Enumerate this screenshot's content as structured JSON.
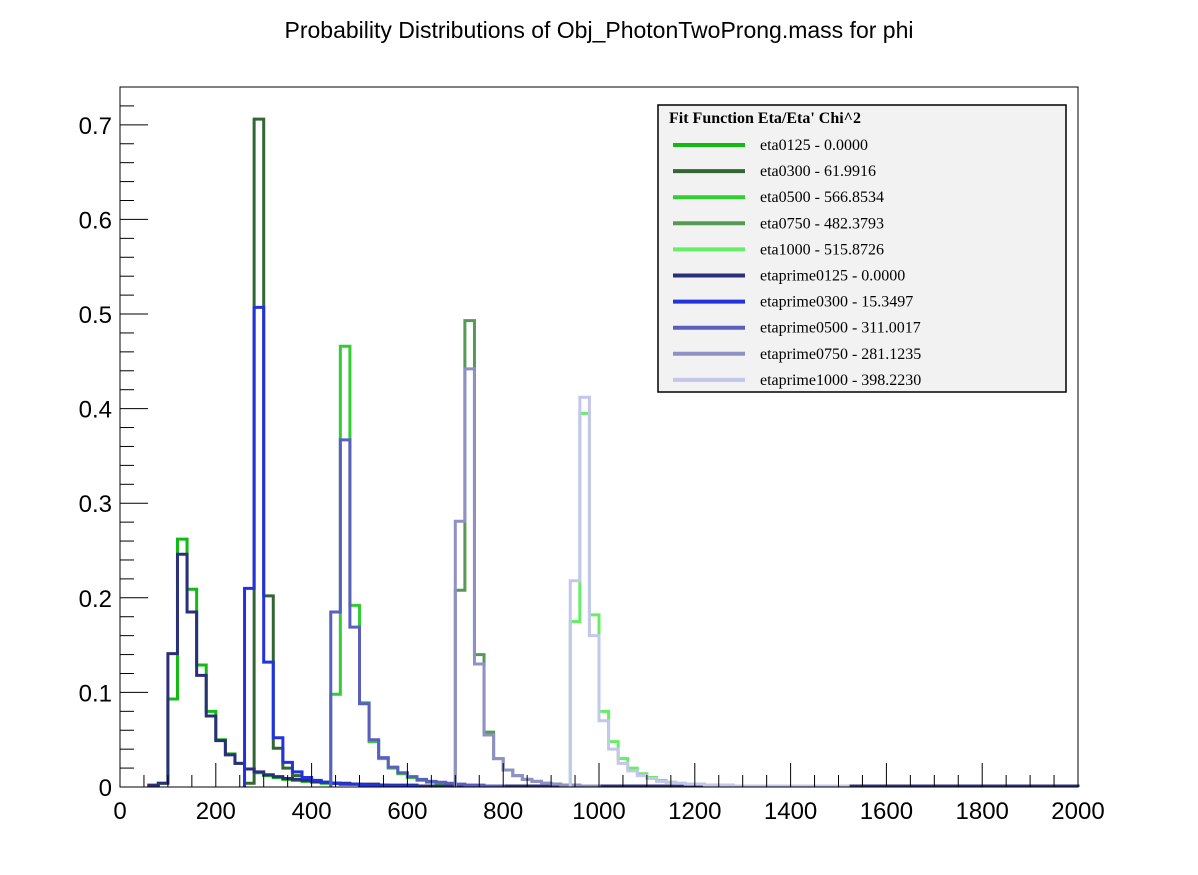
{
  "chart_data": {
    "type": "line",
    "title": "Probability Distributions of Obj_PhotonTwoProng.mass for phi",
    "xlabel": "",
    "ylabel": "",
    "xlim": [
      0,
      2000
    ],
    "ylim": [
      0,
      0.74
    ],
    "x_ticks": [
      0,
      200,
      400,
      600,
      800,
      1000,
      1200,
      1400,
      1600,
      1800,
      2000
    ],
    "y_ticks": [
      0,
      0.1,
      0.2,
      0.3,
      0.4,
      0.5,
      0.6,
      0.7
    ],
    "y_tick_labels": [
      "0",
      "0.1",
      "0.2",
      "0.3",
      "0.4",
      "0.5",
      "0.6",
      "0.7"
    ],
    "grid": false,
    "bin_width": 20,
    "legend": {
      "title": "Fit Function Eta/Eta' Chi^2",
      "placement": "top-right"
    },
    "series": [
      {
        "name": "eta0125 - 0.0000",
        "color": "#11bb11",
        "bins": [
          [
            80,
            0.004
          ],
          [
            100,
            0.093
          ],
          [
            120,
            0.262
          ],
          [
            140,
            0.209
          ],
          [
            160,
            0.129
          ],
          [
            180,
            0.08
          ],
          [
            200,
            0.05
          ],
          [
            220,
            0.035
          ],
          [
            240,
            0.025
          ],
          [
            260,
            0.019
          ],
          [
            280,
            0.015
          ],
          [
            300,
            0.012
          ],
          [
            320,
            0.01
          ],
          [
            340,
            0.008
          ],
          [
            360,
            0.007
          ],
          [
            380,
            0.006
          ],
          [
            400,
            0.005
          ],
          [
            420,
            0.004
          ],
          [
            440,
            0.004
          ],
          [
            460,
            0.003
          ],
          [
            480,
            0.003
          ],
          [
            500,
            0.002
          ],
          [
            520,
            0.002
          ],
          [
            540,
            0.002
          ],
          [
            560,
            0.001
          ],
          [
            580,
            0.001
          ],
          [
            600,
            0.001
          ]
        ]
      },
      {
        "name": "eta0300 - 61.9916",
        "color": "#336633",
        "bins": [
          [
            260,
            0.004
          ],
          [
            280,
            0.706
          ],
          [
            300,
            0.202
          ],
          [
            320,
            0.041
          ],
          [
            340,
            0.02
          ],
          [
            360,
            0.012
          ],
          [
            380,
            0.008
          ],
          [
            400,
            0.006
          ],
          [
            420,
            0.005
          ],
          [
            440,
            0.004
          ],
          [
            460,
            0.003
          ],
          [
            480,
            0.003
          ],
          [
            500,
            0.002
          ],
          [
            520,
            0.002
          ],
          [
            540,
            0.001
          ],
          [
            560,
            0.001
          ],
          [
            580,
            0.001
          ]
        ]
      },
      {
        "name": "eta0500 - 566.8534",
        "color": "#33cc33",
        "bins": [
          [
            440,
            0.098
          ],
          [
            460,
            0.466
          ],
          [
            480,
            0.192
          ],
          [
            500,
            0.089
          ],
          [
            520,
            0.048
          ],
          [
            540,
            0.03
          ],
          [
            560,
            0.02
          ],
          [
            580,
            0.014
          ],
          [
            600,
            0.01
          ],
          [
            620,
            0.007
          ],
          [
            640,
            0.005
          ],
          [
            660,
            0.004
          ],
          [
            680,
            0.003
          ],
          [
            700,
            0.002
          ],
          [
            720,
            0.002
          ],
          [
            740,
            0.001
          ],
          [
            760,
            0.001
          ]
        ]
      },
      {
        "name": "eta0750 - 482.3793",
        "color": "#559955",
        "bins": [
          [
            700,
            0.208
          ],
          [
            720,
            0.493
          ],
          [
            740,
            0.14
          ],
          [
            760,
            0.058
          ],
          [
            780,
            0.03
          ],
          [
            800,
            0.018
          ],
          [
            820,
            0.012
          ],
          [
            840,
            0.008
          ],
          [
            860,
            0.006
          ],
          [
            880,
            0.004
          ],
          [
            900,
            0.003
          ],
          [
            920,
            0.002
          ],
          [
            940,
            0.002
          ],
          [
            960,
            0.001
          ],
          [
            980,
            0.001
          ]
        ]
      },
      {
        "name": "eta1000 - 515.8726",
        "color": "#66ee66",
        "bins": [
          [
            940,
            0.175
          ],
          [
            960,
            0.395
          ],
          [
            980,
            0.182
          ],
          [
            1000,
            0.08
          ],
          [
            1020,
            0.048
          ],
          [
            1040,
            0.03
          ],
          [
            1060,
            0.02
          ],
          [
            1080,
            0.014
          ],
          [
            1100,
            0.01
          ],
          [
            1120,
            0.007
          ],
          [
            1140,
            0.005
          ],
          [
            1160,
            0.004
          ],
          [
            1180,
            0.003
          ],
          [
            1200,
            0.003
          ],
          [
            1220,
            0.002
          ],
          [
            1240,
            0.002
          ],
          [
            1260,
            0.002
          ],
          [
            1280,
            0.001
          ],
          [
            1300,
            0.001
          ],
          [
            1320,
            0.001
          ],
          [
            1340,
            0.001
          ],
          [
            1360,
            0.001
          ],
          [
            1380,
            0.001
          ],
          [
            1400,
            0.001
          ],
          [
            1420,
            0.001
          ],
          [
            1440,
            0.001
          ],
          [
            1460,
            0.001
          ],
          [
            1480,
            0.001
          ],
          [
            1500,
            0.001
          ]
        ]
      },
      {
        "name": "etaprime0125 - 0.0000",
        "color": "#2b2f7a",
        "bins": [
          [
            60,
            0.002
          ],
          [
            80,
            0.004
          ],
          [
            100,
            0.141
          ],
          [
            120,
            0.246
          ],
          [
            140,
            0.185
          ],
          [
            160,
            0.118
          ],
          [
            180,
            0.075
          ],
          [
            200,
            0.049
          ],
          [
            220,
            0.034
          ],
          [
            240,
            0.025
          ],
          [
            260,
            0.019
          ],
          [
            280,
            0.016
          ],
          [
            300,
            0.013
          ],
          [
            320,
            0.011
          ],
          [
            340,
            0.009
          ],
          [
            360,
            0.008
          ],
          [
            380,
            0.007
          ],
          [
            400,
            0.006
          ],
          [
            420,
            0.005
          ],
          [
            440,
            0.004
          ],
          [
            460,
            0.004
          ],
          [
            480,
            0.003
          ],
          [
            500,
            0.003
          ],
          [
            520,
            0.003
          ],
          [
            540,
            0.002
          ],
          [
            560,
            0.002
          ],
          [
            580,
            0.002
          ],
          [
            600,
            0.002
          ],
          [
            620,
            0.001
          ],
          [
            640,
            0.001
          ],
          [
            660,
            0.001
          ],
          [
            680,
            0.001
          ],
          [
            700,
            0.001
          ],
          [
            720,
            0.001
          ],
          [
            740,
            0.001
          ],
          [
            760,
            0.001
          ],
          [
            780,
            0.001
          ],
          [
            800,
            0.001
          ],
          [
            820,
            0.001
          ],
          [
            840,
            0.001
          ],
          [
            860,
            0.001
          ],
          [
            880,
            0.001
          ],
          [
            900,
            0.001
          ],
          [
            920,
            0.001
          ],
          [
            940,
            0.001
          ],
          [
            960,
            0.001
          ],
          [
            980,
            0.001
          ],
          [
            1000,
            0.001
          ],
          [
            1020,
            0.001
          ],
          [
            1040,
            0.001
          ],
          [
            1060,
            0.001
          ],
          [
            1080,
            0.001
          ],
          [
            1100,
            0.001
          ],
          [
            1120,
            0.001
          ],
          [
            1140,
            0.001
          ],
          [
            1160,
            0.001
          ],
          [
            1180,
            0.001
          ],
          [
            1200,
            0.001
          ],
          [
            1220,
            0.001
          ],
          [
            1240,
            0.001
          ],
          [
            1260,
            0.001
          ],
          [
            1280,
            0.001
          ],
          [
            1300,
            0.001
          ],
          [
            1320,
            0.001
          ],
          [
            1340,
            0.001
          ],
          [
            1360,
            0.001
          ],
          [
            1380,
            0.001
          ],
          [
            1400,
            0.001
          ],
          [
            1420,
            0.001
          ],
          [
            1440,
            0.001
          ],
          [
            1460,
            0.001
          ],
          [
            1480,
            0.001
          ],
          [
            1500,
            0.001
          ],
          [
            1520,
            0.001
          ],
          [
            1540,
            0.001
          ],
          [
            1560,
            0.001
          ],
          [
            1580,
            0.001
          ],
          [
            1600,
            0.001
          ],
          [
            1620,
            0.001
          ],
          [
            1640,
            0.001
          ],
          [
            1660,
            0.001
          ],
          [
            1680,
            0.001
          ],
          [
            1700,
            0.001
          ],
          [
            1720,
            0.001
          ],
          [
            1740,
            0.001
          ],
          [
            1760,
            0.001
          ],
          [
            1780,
            0.001
          ],
          [
            1800,
            0.001
          ],
          [
            1820,
            0.001
          ],
          [
            1840,
            0.001
          ],
          [
            1860,
            0.001
          ],
          [
            1880,
            0.001
          ],
          [
            1900,
            0.001
          ],
          [
            1920,
            0.001
          ],
          [
            1940,
            0.001
          ],
          [
            1960,
            0.001
          ],
          [
            1980,
            0.001
          ]
        ]
      },
      {
        "name": "etaprime0300 - 15.3497",
        "color": "#2233dd",
        "bins": [
          [
            260,
            0.21
          ],
          [
            280,
            0.507
          ],
          [
            300,
            0.132
          ],
          [
            320,
            0.052
          ],
          [
            340,
            0.026
          ],
          [
            360,
            0.016
          ],
          [
            380,
            0.01
          ],
          [
            400,
            0.007
          ],
          [
            420,
            0.005
          ],
          [
            440,
            0.004
          ],
          [
            460,
            0.003
          ],
          [
            480,
            0.003
          ],
          [
            500,
            0.002
          ],
          [
            520,
            0.002
          ],
          [
            540,
            0.001
          ],
          [
            560,
            0.001
          ],
          [
            580,
            0.001
          ],
          [
            600,
            0.001
          ]
        ]
      },
      {
        "name": "etaprime0500 - 311.0017",
        "color": "#5a5fbf",
        "bins": [
          [
            440,
            0.185
          ],
          [
            460,
            0.367
          ],
          [
            480,
            0.169
          ],
          [
            500,
            0.088
          ],
          [
            520,
            0.05
          ],
          [
            540,
            0.031
          ],
          [
            560,
            0.021
          ],
          [
            580,
            0.015
          ],
          [
            600,
            0.011
          ],
          [
            620,
            0.008
          ],
          [
            640,
            0.006
          ],
          [
            660,
            0.005
          ],
          [
            680,
            0.004
          ],
          [
            700,
            0.003
          ],
          [
            720,
            0.002
          ],
          [
            740,
            0.002
          ],
          [
            760,
            0.001
          ],
          [
            780,
            0.001
          ]
        ]
      },
      {
        "name": "etaprime0750 - 281.1235",
        "color": "#9090c4",
        "bins": [
          [
            700,
            0.281
          ],
          [
            720,
            0.442
          ],
          [
            740,
            0.13
          ],
          [
            760,
            0.055
          ],
          [
            780,
            0.03
          ],
          [
            800,
            0.018
          ],
          [
            820,
            0.012
          ],
          [
            840,
            0.008
          ],
          [
            860,
            0.006
          ],
          [
            880,
            0.004
          ],
          [
            900,
            0.003
          ],
          [
            920,
            0.002
          ],
          [
            940,
            0.002
          ],
          [
            960,
            0.001
          ],
          [
            980,
            0.001
          ]
        ]
      },
      {
        "name": "etaprime1000 - 398.2230",
        "color": "#c4c6ec",
        "bins": [
          [
            940,
            0.218
          ],
          [
            960,
            0.412
          ],
          [
            980,
            0.16
          ],
          [
            1000,
            0.07
          ],
          [
            1020,
            0.04
          ],
          [
            1040,
            0.025
          ],
          [
            1060,
            0.017
          ],
          [
            1080,
            0.012
          ],
          [
            1100,
            0.009
          ],
          [
            1120,
            0.006
          ],
          [
            1140,
            0.005
          ],
          [
            1160,
            0.004
          ],
          [
            1180,
            0.003
          ],
          [
            1200,
            0.003
          ],
          [
            1220,
            0.002
          ],
          [
            1240,
            0.002
          ],
          [
            1260,
            0.002
          ],
          [
            1280,
            0.001
          ],
          [
            1300,
            0.001
          ],
          [
            1320,
            0.001
          ],
          [
            1340,
            0.001
          ],
          [
            1360,
            0.001
          ],
          [
            1380,
            0.001
          ],
          [
            1400,
            0.001
          ],
          [
            1420,
            0.001
          ],
          [
            1440,
            0.001
          ],
          [
            1460,
            0.001
          ],
          [
            1480,
            0.001
          ],
          [
            1500,
            0.001
          ]
        ]
      }
    ]
  }
}
